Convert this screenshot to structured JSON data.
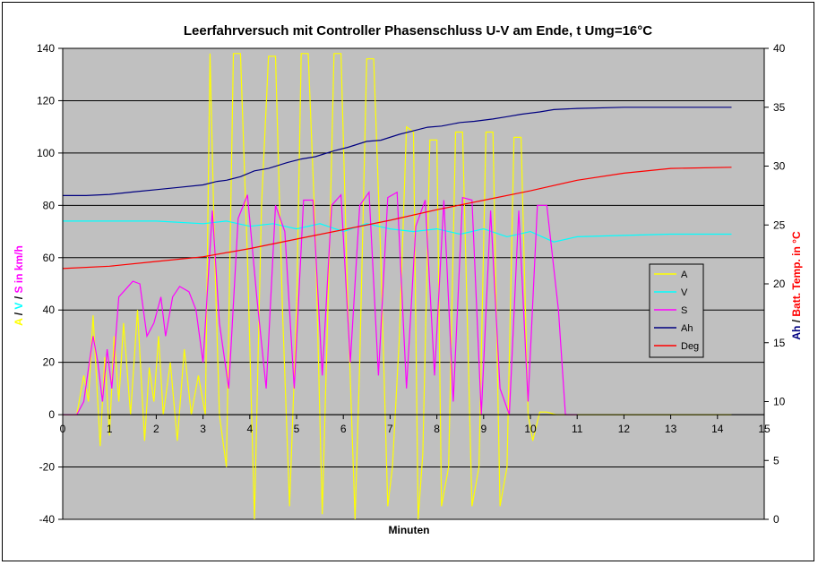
{
  "chart_data": {
    "type": "line",
    "title": "Leerfahrversuch mit Controller Phasenschluss U-V am Ende, t Umg=16°C",
    "xlabel": "Minuten",
    "ylabel_left": {
      "parts": [
        {
          "text": "A",
          "color": "#ffff00"
        },
        {
          "text": " / ",
          "color": "#000000"
        },
        {
          "text": "V",
          "color": "#00ffff"
        },
        {
          "text": " / ",
          "color": "#000000"
        },
        {
          "text": "S in km/h",
          "color": "#ff00ff"
        }
      ]
    },
    "ylabel_right": {
      "parts": [
        {
          "text": "Ah",
          "color": "#000080"
        },
        {
          "text": " / ",
          "color": "#000000"
        },
        {
          "text": "Batt. Temp. in °C",
          "color": "#ff0000"
        }
      ]
    },
    "xlim": [
      0,
      15
    ],
    "ylim_left": [
      -40,
      140
    ],
    "ylim_right": [
      0,
      40
    ],
    "xticks": [
      "0",
      "1",
      "2",
      "3",
      "4",
      "5",
      "6",
      "7",
      "8",
      "9",
      "10",
      "11",
      "12",
      "13",
      "14",
      "15"
    ],
    "yticks_left": [
      "-40",
      "-20",
      "0",
      "20",
      "40",
      "60",
      "80",
      "100",
      "120",
      "140"
    ],
    "yticks_right": [
      "0",
      "5",
      "10",
      "15",
      "20",
      "25",
      "30",
      "35",
      "40"
    ],
    "background": "#c0c0c0",
    "grid": "horizontal",
    "legend_position": "right",
    "series": [
      {
        "name": "A",
        "color": "#ffff00",
        "axis": "left",
        "x": [
          0,
          0.3,
          0.45,
          0.55,
          0.65,
          0.8,
          0.9,
          1.0,
          1.1,
          1.2,
          1.3,
          1.45,
          1.6,
          1.75,
          1.85,
          1.95,
          2.05,
          2.15,
          2.3,
          2.45,
          2.6,
          2.75,
          2.9,
          3.05,
          3.15,
          3.25,
          3.35,
          3.5,
          3.65,
          3.8,
          3.95,
          4.1,
          4.25,
          4.4,
          4.55,
          4.7,
          4.85,
          5.0,
          5.1,
          5.25,
          5.4,
          5.55,
          5.7,
          5.8,
          5.95,
          6.1,
          6.25,
          6.35,
          6.5,
          6.65,
          6.8,
          6.95,
          7.05,
          7.2,
          7.35,
          7.5,
          7.6,
          7.7,
          7.85,
          8.0,
          8.1,
          8.25,
          8.4,
          8.55,
          8.75,
          8.9,
          9.05,
          9.2,
          9.35,
          9.5,
          9.65,
          9.8,
          9.95,
          10.05,
          10.2,
          10.35,
          10.55,
          10.65,
          10.75,
          11.0,
          11.5,
          12.0,
          13.0,
          14.0,
          14.3
        ],
        "y": [
          0,
          0,
          15,
          5,
          38,
          -12,
          22,
          -8,
          30,
          5,
          35,
          0,
          40,
          -10,
          18,
          5,
          30,
          0,
          20,
          -10,
          25,
          0,
          15,
          0,
          138,
          60,
          0,
          -20,
          138,
          138,
          60,
          -40,
          80,
          137,
          137,
          40,
          -35,
          40,
          138,
          138,
          70,
          -38,
          60,
          138,
          138,
          40,
          -40,
          20,
          136,
          136,
          60,
          -35,
          -20,
          30,
          110,
          108,
          -40,
          -15,
          105,
          105,
          -35,
          -20,
          108,
          108,
          -35,
          -20,
          108,
          108,
          -35,
          -20,
          106,
          106,
          0,
          -10,
          1,
          1,
          0,
          0,
          0,
          0,
          0,
          0,
          0,
          0,
          0
        ]
      },
      {
        "name": "V",
        "color": "#00ffff",
        "axis": "left",
        "x": [
          0,
          1,
          2,
          3,
          3.5,
          4,
          4.5,
          5,
          5.5,
          6,
          6.5,
          7,
          7.5,
          8,
          8.5,
          9,
          9.5,
          10,
          10.5,
          11,
          12,
          13,
          14.3
        ],
        "y": [
          74,
          74,
          74,
          73,
          74,
          72,
          73,
          71,
          73,
          70,
          73,
          71,
          70,
          71,
          69,
          71,
          68,
          70,
          66,
          68,
          68.5,
          69,
          69
        ]
      },
      {
        "name": "S",
        "color": "#ff00ff",
        "axis": "left",
        "x": [
          0,
          0.3,
          0.45,
          0.65,
          0.75,
          0.85,
          0.95,
          1.05,
          1.2,
          1.35,
          1.5,
          1.65,
          1.8,
          1.95,
          2.1,
          2.2,
          2.35,
          2.5,
          2.7,
          2.85,
          3.0,
          3.2,
          3.35,
          3.55,
          3.75,
          3.95,
          4.15,
          4.35,
          4.55,
          4.75,
          4.95,
          5.15,
          5.35,
          5.55,
          5.75,
          5.95,
          6.15,
          6.35,
          6.55,
          6.75,
          6.95,
          7.15,
          7.35,
          7.55,
          7.75,
          7.95,
          8.15,
          8.35,
          8.55,
          8.75,
          8.95,
          9.15,
          9.35,
          9.55,
          9.75,
          9.95,
          10.15,
          10.35,
          10.6,
          10.75,
          11.0
        ],
        "y": [
          0,
          0,
          5,
          30,
          20,
          5,
          25,
          10,
          45,
          48,
          51,
          50,
          30,
          35,
          45,
          30,
          45,
          49,
          47,
          40,
          20,
          78,
          35,
          10,
          75,
          84,
          45,
          10,
          80,
          70,
          10,
          82,
          82,
          15,
          80,
          84,
          20,
          80,
          85,
          15,
          83,
          85,
          10,
          72,
          82,
          15,
          82,
          5,
          83,
          82,
          0,
          78,
          10,
          0,
          78,
          5,
          80,
          80,
          40,
          0,
          0
        ]
      },
      {
        "name": "Ah",
        "color": "#000080",
        "axis": "right",
        "x": [
          0,
          0.5,
          1,
          1.5,
          2,
          2.5,
          3,
          3.3,
          3.5,
          3.8,
          4.1,
          4.4,
          4.8,
          5.1,
          5.4,
          5.8,
          6.1,
          6.5,
          6.8,
          7.2,
          7.5,
          7.8,
          8.1,
          8.5,
          8.8,
          9.2,
          9.5,
          9.8,
          10.2,
          10.5,
          11,
          12,
          13,
          14.3
        ],
        "y": [
          27.5,
          27.5,
          27.6,
          27.8,
          28,
          28.2,
          28.4,
          28.7,
          28.8,
          29.1,
          29.6,
          29.8,
          30.3,
          30.6,
          30.8,
          31.3,
          31.6,
          32.1,
          32.2,
          32.7,
          33,
          33.3,
          33.4,
          33.7,
          33.8,
          34,
          34.2,
          34.4,
          34.6,
          34.8,
          34.9,
          35,
          35,
          35
        ]
      },
      {
        "name": "Deg",
        "color": "#ff0000",
        "axis": "right",
        "x": [
          0,
          1,
          2,
          3,
          4,
          5,
          6,
          7,
          8,
          9,
          10,
          11,
          12,
          13,
          14.3
        ],
        "y": [
          21.3,
          21.5,
          21.9,
          22.3,
          23,
          23.8,
          24.6,
          25.4,
          26.3,
          27.1,
          27.9,
          28.8,
          29.4,
          29.8,
          29.9
        ]
      }
    ]
  }
}
